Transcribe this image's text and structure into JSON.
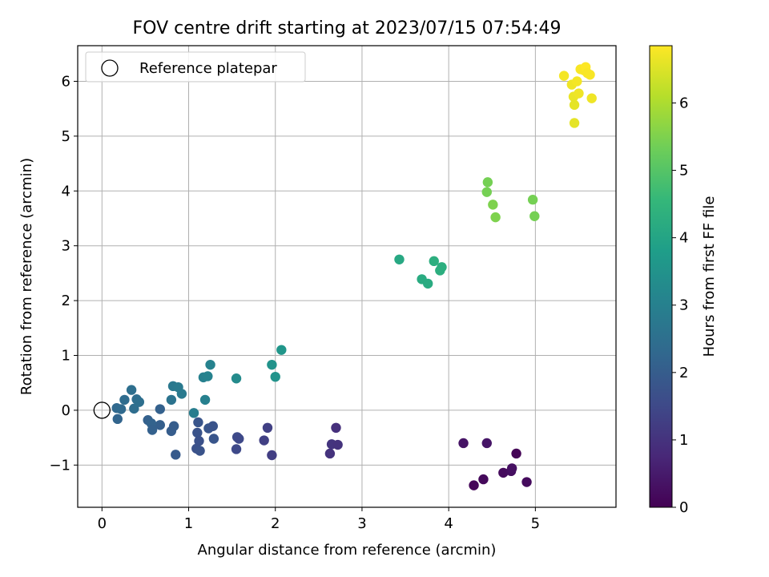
{
  "chart_data": {
    "type": "scatter",
    "title": "FOV centre drift starting at 2023/07/15 07:54:49",
    "xlabel": "Angular distance from reference (arcmin)",
    "ylabel": "Rotation from reference (arcmin)",
    "xlim": [
      -0.28,
      5.93
    ],
    "ylim": [
      -1.77,
      6.65
    ],
    "xticks": [
      0,
      1,
      2,
      3,
      4,
      5
    ],
    "yticks": [
      -1,
      0,
      1,
      2,
      3,
      4,
      5,
      6
    ],
    "xtick_labels": [
      "0",
      "1",
      "2",
      "3",
      "4",
      "5"
    ],
    "ytick_labels": [
      "−1",
      "0",
      "1",
      "2",
      "3",
      "4",
      "5",
      "6"
    ],
    "grid": true,
    "legend": {
      "position": "upper-left",
      "entries": [
        "Reference platepar"
      ]
    },
    "reference_point": {
      "x": 0,
      "y": 0,
      "label": "Reference platepar"
    },
    "colorbar": {
      "label": "Hours from first FF file",
      "colormap": "viridis",
      "min": 0,
      "max": 6.85,
      "ticks": [
        0,
        1,
        2,
        3,
        4,
        5,
        6
      ],
      "tick_labels": [
        "0",
        "1",
        "2",
        "3",
        "4",
        "5",
        "6"
      ]
    },
    "points": [
      {
        "x": 4.17,
        "y": -0.6,
        "t": 0.35
      },
      {
        "x": 4.44,
        "y": -0.6,
        "t": 0.4
      },
      {
        "x": 4.29,
        "y": -1.37,
        "t": 0.1
      },
      {
        "x": 4.4,
        "y": -1.26,
        "t": 0.15
      },
      {
        "x": 4.63,
        "y": -1.14,
        "t": 0.2
      },
      {
        "x": 4.72,
        "y": -1.11,
        "t": 0.25
      },
      {
        "x": 4.73,
        "y": -1.06,
        "t": 0.3
      },
      {
        "x": 4.78,
        "y": -0.79,
        "t": 0.05
      },
      {
        "x": 4.9,
        "y": -1.31,
        "t": 0.2
      },
      {
        "x": 2.63,
        "y": -0.79,
        "t": 1.0
      },
      {
        "x": 2.65,
        "y": -0.62,
        "t": 1.05
      },
      {
        "x": 2.7,
        "y": -0.32,
        "t": 0.95
      },
      {
        "x": 2.72,
        "y": -0.63,
        "t": 1.0
      },
      {
        "x": 1.87,
        "y": -0.55,
        "t": 1.3
      },
      {
        "x": 1.91,
        "y": -0.32,
        "t": 1.3
      },
      {
        "x": 1.96,
        "y": -0.82,
        "t": 1.25
      },
      {
        "x": 1.55,
        "y": -0.71,
        "t": 1.5
      },
      {
        "x": 1.56,
        "y": -0.49,
        "t": 1.55
      },
      {
        "x": 1.58,
        "y": -0.52,
        "t": 1.5
      },
      {
        "x": 1.09,
        "y": -0.7,
        "t": 1.7
      },
      {
        "x": 1.1,
        "y": -0.41,
        "t": 1.75
      },
      {
        "x": 1.11,
        "y": -0.22,
        "t": 1.8
      },
      {
        "x": 1.12,
        "y": -0.56,
        "t": 1.7
      },
      {
        "x": 1.13,
        "y": -0.74,
        "t": 1.75
      },
      {
        "x": 1.23,
        "y": -0.33,
        "t": 1.8
      },
      {
        "x": 1.28,
        "y": -0.29,
        "t": 1.75
      },
      {
        "x": 1.29,
        "y": -0.52,
        "t": 1.8
      },
      {
        "x": 0.8,
        "y": -0.38,
        "t": 2.0
      },
      {
        "x": 0.83,
        "y": -0.29,
        "t": 2.0
      },
      {
        "x": 0.85,
        "y": -0.81,
        "t": 1.95
      },
      {
        "x": 0.67,
        "y": -0.27,
        "t": 2.05
      },
      {
        "x": 0.67,
        "y": 0.02,
        "t": 2.1
      },
      {
        "x": 0.53,
        "y": -0.18,
        "t": 2.1
      },
      {
        "x": 0.57,
        "y": -0.24,
        "t": 2.15
      },
      {
        "x": 0.58,
        "y": -0.36,
        "t": 2.1
      },
      {
        "x": 0.18,
        "y": -0.16,
        "t": 2.2
      },
      {
        "x": 0.17,
        "y": 0.04,
        "t": 2.3
      },
      {
        "x": 0.22,
        "y": 0.02,
        "t": 2.35
      },
      {
        "x": 0.26,
        "y": 0.19,
        "t": 2.4
      },
      {
        "x": 0.34,
        "y": 0.37,
        "t": 2.5
      },
      {
        "x": 0.37,
        "y": 0.03,
        "t": 2.45
      },
      {
        "x": 0.4,
        "y": 0.2,
        "t": 2.45
      },
      {
        "x": 0.43,
        "y": 0.15,
        "t": 2.5
      },
      {
        "x": 0.8,
        "y": 0.19,
        "t": 2.6
      },
      {
        "x": 0.82,
        "y": 0.44,
        "t": 2.75
      },
      {
        "x": 0.88,
        "y": 0.42,
        "t": 2.8
      },
      {
        "x": 0.92,
        "y": 0.3,
        "t": 2.8
      },
      {
        "x": 1.06,
        "y": -0.05,
        "t": 2.9
      },
      {
        "x": 1.17,
        "y": 0.6,
        "t": 3.0
      },
      {
        "x": 1.19,
        "y": 0.19,
        "t": 3.0
      },
      {
        "x": 1.22,
        "y": 0.62,
        "t": 3.05
      },
      {
        "x": 1.25,
        "y": 0.83,
        "t": 3.05
      },
      {
        "x": 1.55,
        "y": 0.58,
        "t": 3.3
      },
      {
        "x": 1.96,
        "y": 0.83,
        "t": 3.5
      },
      {
        "x": 2.0,
        "y": 0.61,
        "t": 3.5
      },
      {
        "x": 2.07,
        "y": 1.1,
        "t": 3.6
      },
      {
        "x": 3.43,
        "y": 2.75,
        "t": 4.1
      },
      {
        "x": 3.69,
        "y": 2.39,
        "t": 4.2
      },
      {
        "x": 3.76,
        "y": 2.31,
        "t": 4.2
      },
      {
        "x": 3.83,
        "y": 2.72,
        "t": 4.3
      },
      {
        "x": 3.9,
        "y": 2.55,
        "t": 4.3
      },
      {
        "x": 3.92,
        "y": 2.61,
        "t": 4.3
      },
      {
        "x": 4.44,
        "y": 3.98,
        "t": 5.4
      },
      {
        "x": 4.45,
        "y": 4.16,
        "t": 5.4
      },
      {
        "x": 4.51,
        "y": 3.75,
        "t": 5.5
      },
      {
        "x": 4.54,
        "y": 3.52,
        "t": 5.5
      },
      {
        "x": 4.97,
        "y": 3.84,
        "t": 5.4
      },
      {
        "x": 4.99,
        "y": 3.54,
        "t": 5.4
      },
      {
        "x": 5.33,
        "y": 6.1,
        "t": 6.75
      },
      {
        "x": 5.42,
        "y": 5.94,
        "t": 6.7
      },
      {
        "x": 5.44,
        "y": 5.72,
        "t": 6.65
      },
      {
        "x": 5.45,
        "y": 5.57,
        "t": 6.6
      },
      {
        "x": 5.45,
        "y": 5.24,
        "t": 6.6
      },
      {
        "x": 5.48,
        "y": 6.0,
        "t": 6.75
      },
      {
        "x": 5.5,
        "y": 5.78,
        "t": 6.7
      },
      {
        "x": 5.52,
        "y": 6.22,
        "t": 6.8
      },
      {
        "x": 5.56,
        "y": 6.2,
        "t": 6.8
      },
      {
        "x": 5.58,
        "y": 6.26,
        "t": 6.85
      },
      {
        "x": 5.6,
        "y": 6.15,
        "t": 6.8
      },
      {
        "x": 5.63,
        "y": 6.12,
        "t": 6.8
      },
      {
        "x": 5.65,
        "y": 5.69,
        "t": 6.7
      }
    ]
  }
}
